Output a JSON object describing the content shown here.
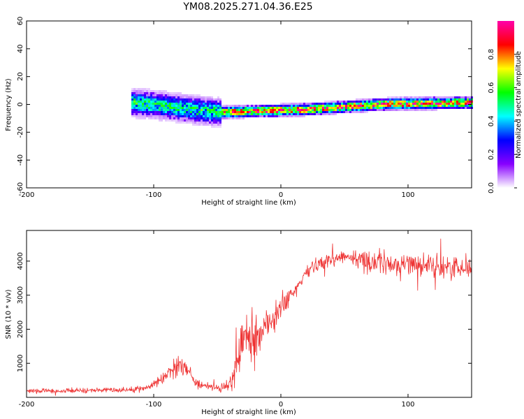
{
  "title": "YM08.2025.271.04.36.E25",
  "chart_data": [
    {
      "type": "heatmap",
      "name": "spectrogram",
      "xlabel": "Height of straight line (km)",
      "ylabel": "Frequency (Hz)",
      "xlim": [
        -200,
        150
      ],
      "ylim": [
        -60,
        60
      ],
      "xticks": [
        -200,
        -100,
        0,
        100
      ],
      "xtick_labels": [
        "-200",
        "-100",
        "0",
        "100"
      ],
      "yticks": [
        -60,
        -40,
        -20,
        0,
        20,
        40,
        60
      ],
      "ytick_labels": [
        "-60",
        "-40",
        "-20",
        "0",
        "20",
        "40",
        "60"
      ],
      "colorbar": {
        "label": "Normalized spectral amplitude",
        "range": [
          0,
          1
        ],
        "ticks": [
          0.0,
          0.2,
          0.4,
          0.6,
          0.8
        ],
        "tick_labels": [
          "0.0",
          "0.2",
          "0.4",
          "0.6",
          "0.8"
        ],
        "colors": [
          "#ffffff",
          "#8800ff",
          "#0000ff",
          "#00ffff",
          "#00ff00",
          "#ffff00",
          "#ff0000",
          "#ff00aa"
        ]
      },
      "features": [
        {
          "region": "broadband noise",
          "x_range": [
            -200,
            -105
          ],
          "freq_range": [
            -60,
            60
          ],
          "amplitude": 0.1
        },
        {
          "region": "broadband noise (faint)",
          "x_range": [
            -105,
            -98
          ],
          "freq_range": [
            -60,
            60
          ],
          "amplitude": 0.03
        },
        {
          "region": "broadband noise (faint)",
          "x_range": [
            -78,
            -49
          ],
          "freq_range": [
            -60,
            60
          ],
          "amplitude": 0.06
        },
        {
          "region": "signal band",
          "x_range": [
            -118,
            -48
          ],
          "center_freq": [
            2,
            0,
            -3,
            -5
          ],
          "amplitude": 0.5
        },
        {
          "region": "signal band",
          "x_range": [
            -48,
            150
          ],
          "center_freq": [
            -5,
            -3,
            1,
            2
          ],
          "amplitude": 0.85
        }
      ]
    },
    {
      "type": "line",
      "name": "snr",
      "xlabel": "Height of straight line (km)",
      "ylabel": "SNR (10 * v/v)",
      "xlim": [
        -200,
        150
      ],
      "ylim": [
        0,
        4900
      ],
      "xticks": [
        -200,
        -100,
        0,
        100
      ],
      "xtick_labels": [
        "-200",
        "-100",
        "0",
        "100"
      ],
      "yticks": [
        1000,
        2000,
        3000,
        4000
      ],
      "ytick_labels": [
        "1000",
        "2000",
        "3000",
        "4000"
      ],
      "line_color": "#ee3333",
      "x": [
        -200,
        -180,
        -160,
        -140,
        -120,
        -105,
        -95,
        -88,
        -82,
        -78,
        -74,
        -70,
        -65,
        -58,
        -50,
        -42,
        -38,
        -34,
        -30,
        -26,
        -22,
        -18,
        -14,
        -10,
        -6,
        -2,
        2,
        6,
        10,
        15,
        20,
        25,
        30,
        35,
        40,
        50,
        60,
        70,
        80,
        90,
        100,
        110,
        120,
        130,
        140,
        150
      ],
      "mean": [
        180,
        190,
        200,
        210,
        230,
        280,
        500,
        750,
        900,
        1050,
        850,
        600,
        380,
        320,
        260,
        300,
        600,
        1000,
        1700,
        1800,
        1600,
        1900,
        2000,
        2200,
        2300,
        2500,
        2700,
        2900,
        3050,
        3350,
        3650,
        3850,
        3950,
        4000,
        4050,
        4150,
        4050,
        4000,
        3950,
        3850,
        3950,
        3900,
        3850,
        3800,
        3850,
        3800
      ],
      "spread": [
        70,
        70,
        70,
        70,
        70,
        80,
        150,
        250,
        300,
        300,
        250,
        180,
        120,
        100,
        90,
        150,
        450,
        500,
        600,
        700,
        650,
        600,
        550,
        500,
        450,
        400,
        350,
        300,
        250,
        220,
        200,
        180,
        170,
        170,
        180,
        200,
        250,
        300,
        350,
        300,
        300,
        280,
        280,
        300,
        300,
        280
      ]
    }
  ]
}
